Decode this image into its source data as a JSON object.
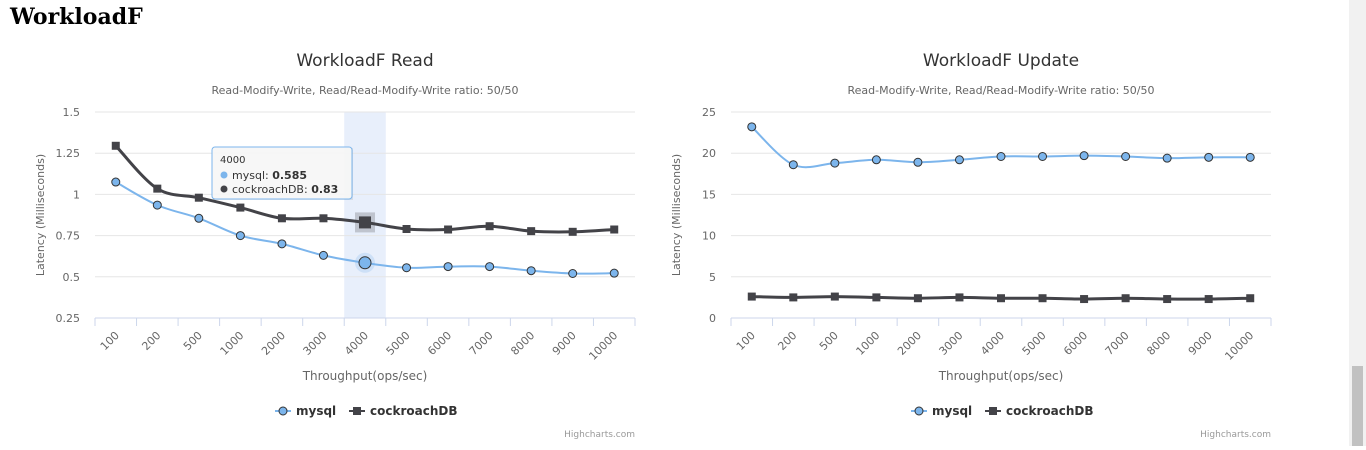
{
  "page": {
    "heading": "WorkloadF"
  },
  "colors": {
    "mysql": "#7cb5ec",
    "cockroach": "#434348",
    "grid": "#e6e6e6",
    "axis": "#ccd6eb",
    "highlight": "#ccdcf7"
  },
  "chart_data": [
    {
      "type": "line",
      "title": "WorkloadF Read",
      "subtitle": "Read-Modify-Write, Read/Read-Modify-Write ratio: 50/50",
      "xlabel": "Throughput(ops/sec)",
      "ylabel": "Latency (Milliseconds)",
      "categories": [
        "100",
        "200",
        "500",
        "1000",
        "2000",
        "3000",
        "4000",
        "5000",
        "6000",
        "7000",
        "8000",
        "9000",
        "10000"
      ],
      "ylim": [
        0.25,
        1.5
      ],
      "yticks": [
        0.25,
        0.5,
        0.75,
        1,
        1.25,
        1.5
      ],
      "ytick_labels": [
        "0.25",
        "0.5",
        "0.75",
        "1",
        "1.25",
        "1.5"
      ],
      "grid": true,
      "legend_position": "bottom-center",
      "series": [
        {
          "name": "mysql",
          "marker": "circle",
          "values": [
            1.075,
            0.935,
            0.855,
            0.75,
            0.7,
            0.63,
            0.585,
            0.555,
            0.562,
            0.562,
            0.537,
            0.52,
            0.522
          ]
        },
        {
          "name": "cockroachDB",
          "marker": "square",
          "values": [
            1.295,
            1.035,
            0.98,
            0.92,
            0.855,
            0.855,
            0.83,
            0.79,
            0.787,
            0.807,
            0.777,
            0.773,
            0.787
          ]
        }
      ],
      "tooltip": {
        "category_index": 6,
        "header": "4000",
        "rows": [
          {
            "series": "mysql",
            "label": "mysql: ",
            "value": "0.585"
          },
          {
            "series": "cockroachDB",
            "label": "cockroachDB: ",
            "value": "0.83"
          }
        ]
      },
      "credits": "Highcharts.com"
    },
    {
      "type": "line",
      "title": "WorkloadF Update",
      "subtitle": "Read-Modify-Write, Read/Read-Modify-Write ratio: 50/50",
      "xlabel": "Throughput(ops/sec)",
      "ylabel": "Latency (Milliseconds)",
      "categories": [
        "100",
        "200",
        "500",
        "1000",
        "2000",
        "3000",
        "4000",
        "5000",
        "6000",
        "7000",
        "8000",
        "9000",
        "10000"
      ],
      "ylim": [
        0,
        25
      ],
      "yticks": [
        0,
        5,
        10,
        15,
        20,
        25
      ],
      "ytick_labels": [
        "0",
        "5",
        "10",
        "15",
        "20",
        "25"
      ],
      "grid": true,
      "legend_position": "bottom-center",
      "series": [
        {
          "name": "mysql",
          "marker": "circle",
          "values": [
            23.2,
            18.6,
            18.8,
            19.2,
            18.9,
            19.2,
            19.6,
            19.6,
            19.7,
            19.6,
            19.4,
            19.5,
            19.5
          ]
        },
        {
          "name": "cockroachDB",
          "marker": "square",
          "values": [
            2.6,
            2.5,
            2.6,
            2.5,
            2.4,
            2.5,
            2.4,
            2.4,
            2.3,
            2.4,
            2.3,
            2.3,
            2.4
          ]
        }
      ],
      "credits": "Highcharts.com"
    }
  ]
}
